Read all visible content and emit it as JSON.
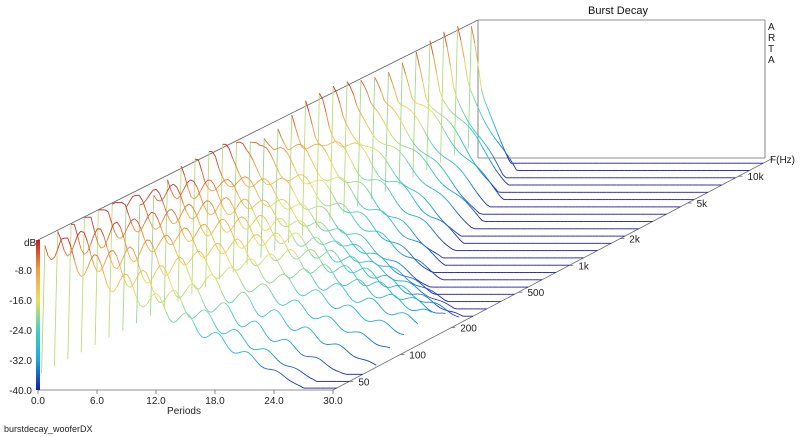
{
  "chart_data": {
    "type": "area",
    "title": "Burst Decay",
    "watermark": "A\nR\nT\nA",
    "footer": "burstdecay_wooferDX",
    "xlabel": "Periods",
    "ylabel": "dB",
    "zlabel": "F(Hz)",
    "x_ticks": [
      "0.0",
      "6.0",
      "12.0",
      "18.0",
      "24.0",
      "30.0"
    ],
    "xlim": [
      0,
      30
    ],
    "y_ticks": [
      "-8.0",
      "-16.0",
      "-24.0",
      "-32.0",
      "-40.0"
    ],
    "ylim": [
      -40,
      0
    ],
    "z_ticks": [
      "50",
      "100",
      "200",
      "500",
      "1k",
      "2k",
      "5k",
      "10k"
    ],
    "z_scale": "log",
    "zlim": [
      40,
      16000
    ],
    "colormap": [
      "#1a1ab0",
      "#1aa8e0",
      "#45d0c0",
      "#e8e060",
      "#f0a040",
      "#c02020"
    ],
    "series": [
      {
        "f": 42,
        "decay_periods": 12,
        "peak_db": 0,
        "ripple_db": 5
      },
      {
        "f": 50,
        "decay_periods": 12,
        "peak_db": 0,
        "ripple_db": 5
      },
      {
        "f": 60,
        "decay_periods": 13,
        "peak_db": -1,
        "ripple_db": 5
      },
      {
        "f": 72,
        "decay_periods": 14,
        "peak_db": -1,
        "ripple_db": 5
      },
      {
        "f": 87,
        "decay_periods": 15,
        "peak_db": -1,
        "ripple_db": 4
      },
      {
        "f": 105,
        "decay_periods": 16,
        "peak_db": -1,
        "ripple_db": 4
      },
      {
        "f": 127,
        "decay_periods": 17,
        "peak_db": -2,
        "ripple_db": 4
      },
      {
        "f": 153,
        "decay_periods": 17,
        "peak_db": -2,
        "ripple_db": 4
      },
      {
        "f": 185,
        "decay_periods": 16,
        "peak_db": -2,
        "ripple_db": 4
      },
      {
        "f": 223,
        "decay_periods": 15,
        "peak_db": -2,
        "ripple_db": 4
      },
      {
        "f": 269,
        "decay_periods": 14,
        "peak_db": -3,
        "ripple_db": 4
      },
      {
        "f": 325,
        "decay_periods": 13,
        "peak_db": -3,
        "ripple_db": 3
      },
      {
        "f": 392,
        "decay_periods": 12,
        "peak_db": -3,
        "ripple_db": 3
      },
      {
        "f": 473,
        "decay_periods": 11,
        "peak_db": -4,
        "ripple_db": 3
      },
      {
        "f": 571,
        "decay_periods": 10,
        "peak_db": -4,
        "ripple_db": 3
      },
      {
        "f": 689,
        "decay_periods": 10,
        "peak_db": -4,
        "ripple_db": 3
      },
      {
        "f": 832,
        "decay_periods": 9,
        "peak_db": -5,
        "ripple_db": 3
      },
      {
        "f": 1004,
        "decay_periods": 9,
        "peak_db": -5,
        "ripple_db": 3
      },
      {
        "f": 1212,
        "decay_periods": 8,
        "peak_db": -5,
        "ripple_db": 3
      },
      {
        "f": 1463,
        "decay_periods": 8,
        "peak_db": -5,
        "ripple_db": 3
      },
      {
        "f": 1766,
        "decay_periods": 8,
        "peak_db": -6,
        "ripple_db": 3
      },
      {
        "f": 2131,
        "decay_periods": 7,
        "peak_db": -6,
        "ripple_db": 2
      },
      {
        "f": 2572,
        "decay_periods": 7,
        "peak_db": -6,
        "ripple_db": 2
      },
      {
        "f": 3105,
        "decay_periods": 7,
        "peak_db": -7,
        "ripple_db": 2
      },
      {
        "f": 3748,
        "decay_periods": 6,
        "peak_db": -7,
        "ripple_db": 2
      },
      {
        "f": 4524,
        "decay_periods": 6,
        "peak_db": -8,
        "ripple_db": 2
      },
      {
        "f": 5461,
        "decay_periods": 6,
        "peak_db": -8,
        "ripple_db": 2
      },
      {
        "f": 6592,
        "decay_periods": 5,
        "peak_db": -9,
        "ripple_db": 2
      },
      {
        "f": 7957,
        "decay_periods": 5,
        "peak_db": -10,
        "ripple_db": 2
      },
      {
        "f": 9605,
        "decay_periods": 4,
        "peak_db": -11,
        "ripple_db": 2
      },
      {
        "f": 11594,
        "decay_periods": 4,
        "peak_db": -12,
        "ripple_db": 2
      },
      {
        "f": 13995,
        "decay_periods": 3,
        "peak_db": -14,
        "ripple_db": 1
      }
    ]
  }
}
